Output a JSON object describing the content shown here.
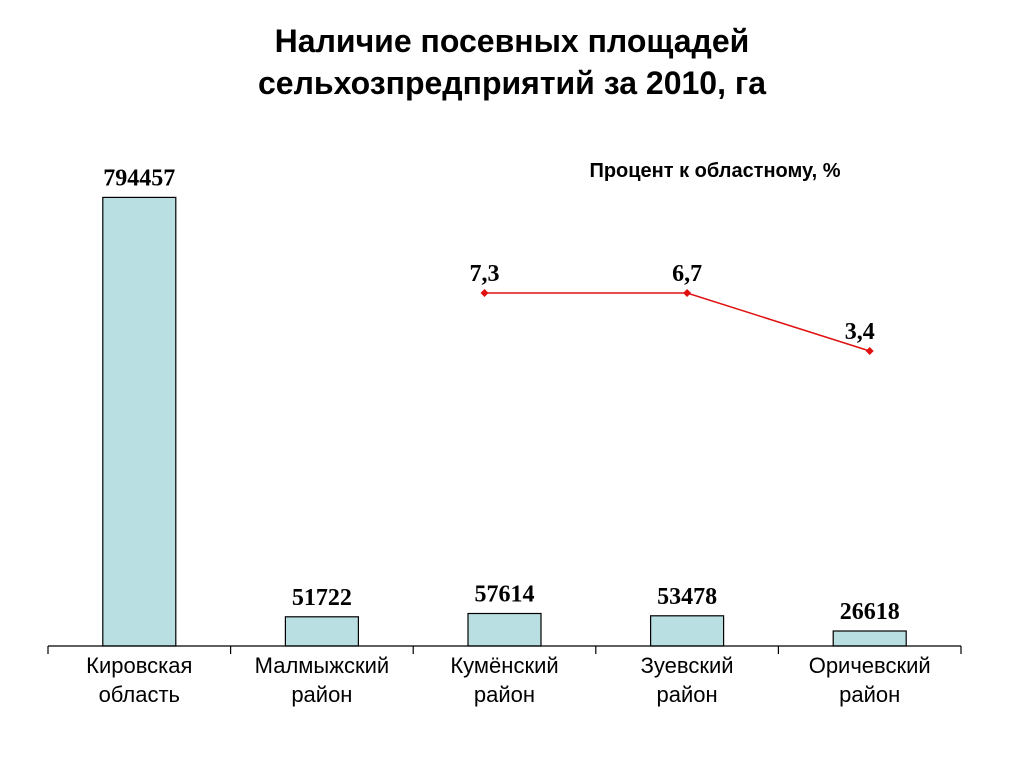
{
  "chart_data": {
    "type": "bar",
    "title": [
      "Наличие посевных площадей",
      "сельхозпредприятий за 2010, га"
    ],
    "categories": [
      [
        "Кировская",
        "область"
      ],
      [
        "Малмыжский",
        "район"
      ],
      [
        "Кумёнский",
        "район"
      ],
      [
        "Зуевский",
        "район"
      ],
      [
        "Оричевский",
        "район"
      ]
    ],
    "series": [
      {
        "values": [
          794457,
          51722,
          57614,
          53478,
          26618
        ]
      }
    ],
    "value_labels": [
      "794457",
      "51722",
      "57614",
      "53478",
      "26618"
    ],
    "ylim": [
      0,
      850000
    ],
    "bar_color": "#b9dfe2",
    "grid": false,
    "secondary": {
      "type": "line",
      "title": "Процент к областному, %",
      "category_indices": [
        2,
        3,
        4
      ],
      "values": [
        7.3,
        6.7,
        3.4
      ],
      "labels": [
        "7,3",
        "6,7",
        "3,4"
      ],
      "color": "#e01010"
    }
  }
}
